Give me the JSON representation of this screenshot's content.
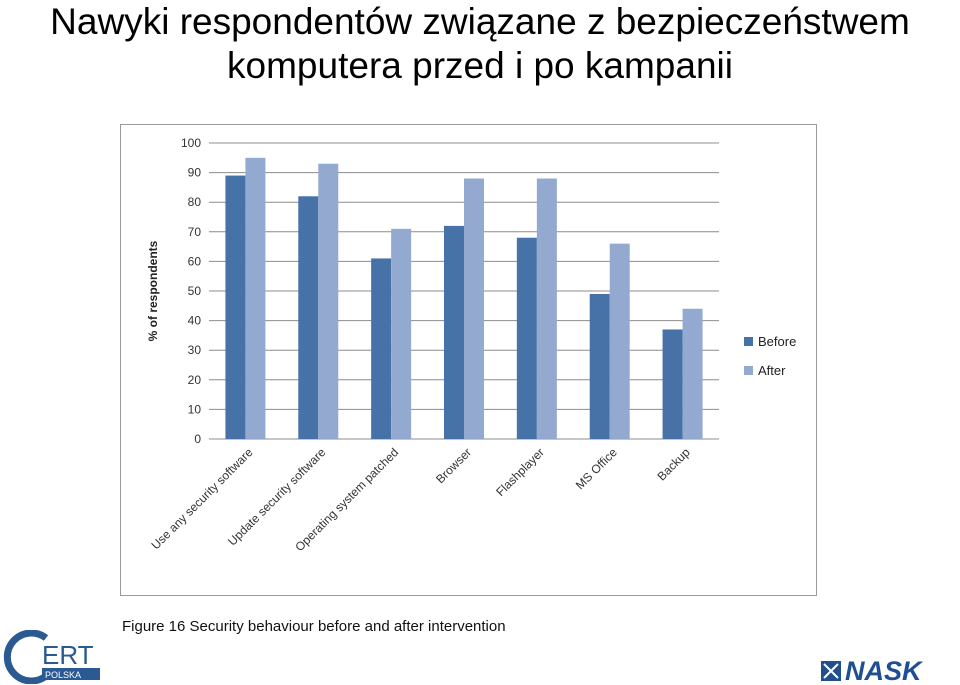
{
  "slide": {
    "title_line1": "Nawyki respondentów związane z bezpieczeństwem",
    "title_line2": "komputera przed i po kampanii",
    "caption": "Figure 16 Security behaviour before and after intervention"
  },
  "logos": {
    "cert_text": "ERT",
    "cert_sub": "POLSKA",
    "nask_text": "NASK"
  },
  "colors": {
    "before": "#4672a8",
    "after": "#94a9d0",
    "grid": "#8c8c8c",
    "cert": "#2b5a93",
    "nask": "#1f4f91"
  },
  "chart_data": {
    "type": "bar",
    "title": "",
    "xlabel": "",
    "ylabel": "% of respondents",
    "ylim": [
      0,
      100
    ],
    "yticks": [
      0,
      10,
      20,
      30,
      40,
      50,
      60,
      70,
      80,
      90,
      100
    ],
    "categories": [
      "Use any security software",
      "Update security software",
      "Operating system patched",
      "Browser",
      "Flashplayer",
      "MS Office",
      "Backup"
    ],
    "series": [
      {
        "name": "Before",
        "values": [
          89,
          82,
          61,
          72,
          68,
          49,
          37
        ]
      },
      {
        "name": "After",
        "values": [
          95,
          93,
          71,
          88,
          88,
          66,
          44
        ]
      }
    ],
    "grid": true,
    "legend_position": "right"
  }
}
